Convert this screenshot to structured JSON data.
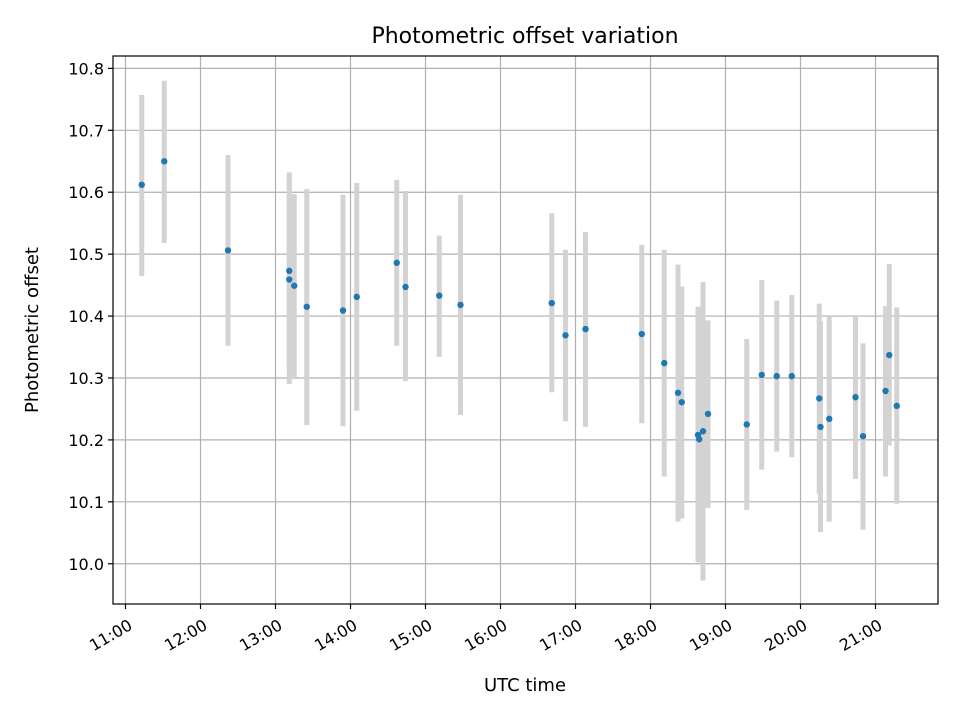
{
  "chart_data": {
    "type": "scatter",
    "title": "Photometric offset variation",
    "xlabel": "UTC time",
    "ylabel": "Photometric offset",
    "xlim": [
      "10:50",
      "21:50"
    ],
    "ylim": [
      9.935,
      10.82
    ],
    "x_ticks": [
      "11:00",
      "12:00",
      "13:00",
      "14:00",
      "15:00",
      "16:00",
      "17:00",
      "18:00",
      "19:00",
      "20:00",
      "21:00"
    ],
    "y_ticks": [
      "10.0",
      "10.1",
      "10.2",
      "10.3",
      "10.4",
      "10.5",
      "10.6",
      "10.7",
      "10.8"
    ],
    "grid": true,
    "legend": "none",
    "marker_color": "#1f77b4",
    "errorbar_color": "#d3d3d3",
    "series": [
      {
        "points": [
          {
            "x": "11:13",
            "y": 10.612,
            "lo": 10.465,
            "hi": 10.757
          },
          {
            "x": "11:31",
            "y": 10.65,
            "lo": 10.518,
            "hi": 10.78
          },
          {
            "x": "12:22",
            "y": 10.506,
            "lo": 10.352,
            "hi": 10.66
          },
          {
            "x": "13:11",
            "y": 10.473,
            "lo": 10.315,
            "hi": 10.632
          },
          {
            "x": "13:11",
            "y": 10.459,
            "lo": 10.29,
            "hi": 10.628
          },
          {
            "x": "13:15",
            "y": 10.449,
            "lo": 10.3,
            "hi": 10.597
          },
          {
            "x": "13:25",
            "y": 10.415,
            "lo": 10.224,
            "hi": 10.605
          },
          {
            "x": "13:54",
            "y": 10.409,
            "lo": 10.222,
            "hi": 10.596
          },
          {
            "x": "14:05",
            "y": 10.431,
            "lo": 10.247,
            "hi": 10.615
          },
          {
            "x": "14:37",
            "y": 10.486,
            "lo": 10.352,
            "hi": 10.62
          },
          {
            "x": "14:44",
            "y": 10.447,
            "lo": 10.295,
            "hi": 10.602
          },
          {
            "x": "15:11",
            "y": 10.433,
            "lo": 10.334,
            "hi": 10.53
          },
          {
            "x": "15:28",
            "y": 10.418,
            "lo": 10.24,
            "hi": 10.596
          },
          {
            "x": "16:41",
            "y": 10.421,
            "lo": 10.277,
            "hi": 10.566
          },
          {
            "x": "16:52",
            "y": 10.369,
            "lo": 10.23,
            "hi": 10.507
          },
          {
            "x": "17:08",
            "y": 10.379,
            "lo": 10.221,
            "hi": 10.536
          },
          {
            "x": "17:53",
            "y": 10.371,
            "lo": 10.227,
            "hi": 10.515
          },
          {
            "x": "18:11",
            "y": 10.324,
            "lo": 10.141,
            "hi": 10.507
          },
          {
            "x": "18:22",
            "y": 10.276,
            "lo": 10.068,
            "hi": 10.483
          },
          {
            "x": "18:25",
            "y": 10.261,
            "lo": 10.073,
            "hi": 10.448
          },
          {
            "x": "18:38",
            "y": 10.208,
            "lo": 10.003,
            "hi": 10.415
          },
          {
            "x": "18:39",
            "y": 10.201,
            "lo": 10.002,
            "hi": 10.4
          },
          {
            "x": "18:42",
            "y": 10.214,
            "lo": 9.973,
            "hi": 10.455
          },
          {
            "x": "18:46",
            "y": 10.242,
            "lo": 10.09,
            "hi": 10.393
          },
          {
            "x": "19:17",
            "y": 10.225,
            "lo": 10.087,
            "hi": 10.363
          },
          {
            "x": "19:29",
            "y": 10.305,
            "lo": 10.152,
            "hi": 10.458
          },
          {
            "x": "19:41",
            "y": 10.303,
            "lo": 10.181,
            "hi": 10.425
          },
          {
            "x": "19:53",
            "y": 10.303,
            "lo": 10.172,
            "hi": 10.434
          },
          {
            "x": "20:15",
            "y": 10.267,
            "lo": 10.113,
            "hi": 10.42
          },
          {
            "x": "20:16",
            "y": 10.221,
            "lo": 10.051,
            "hi": 10.391
          },
          {
            "x": "20:23",
            "y": 10.234,
            "lo": 10.068,
            "hi": 10.4
          },
          {
            "x": "20:44",
            "y": 10.269,
            "lo": 10.137,
            "hi": 10.4
          },
          {
            "x": "20:50",
            "y": 10.206,
            "lo": 10.055,
            "hi": 10.356
          },
          {
            "x": "21:08",
            "y": 10.279,
            "lo": 10.141,
            "hi": 10.416
          },
          {
            "x": "21:11",
            "y": 10.337,
            "lo": 10.191,
            "hi": 10.484
          },
          {
            "x": "21:17",
            "y": 10.255,
            "lo": 10.097,
            "hi": 10.414
          }
        ]
      }
    ]
  }
}
